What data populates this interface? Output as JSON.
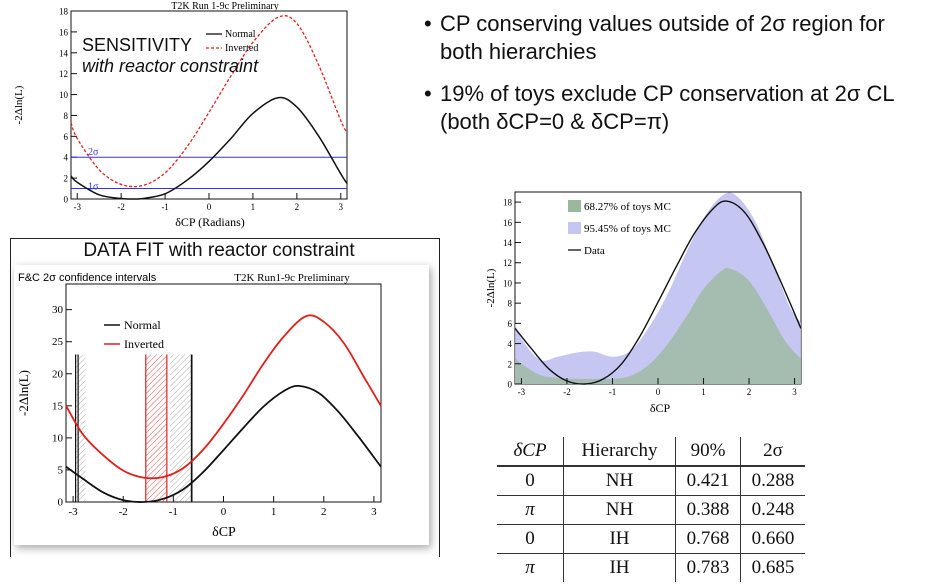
{
  "sensitivity": {
    "header": "T2K Run 1-9c Preliminary",
    "label": "SENSITIVITY",
    "sublabel": "with reactor constraint",
    "xlabel": "δCP (Radians)",
    "ylabel": "-2Δln(L)",
    "legend": [
      "Normal",
      "Inverted"
    ],
    "sigma_labels": [
      "2σ",
      "1σ"
    ]
  },
  "bullets": [
    "CP conserving values outside of 2σ region for both hierarchies",
    "19% of toys exclude CP conservation at 2σ CL (both δCP=0 & δCP=π)"
  ],
  "datafit": {
    "title": "DATA FIT with reactor constraint",
    "caption": "F&C 2σ confidence intervals",
    "header": "T2K Run1-9c Preliminary",
    "xlabel": "δCP",
    "ylabel": "-2Δln(L)",
    "legend": [
      "Normal",
      "Inverted"
    ]
  },
  "toys": {
    "xlabel": "δCP",
    "ylabel": "-2Δln(L)",
    "legend": [
      "68.27% of toys MC",
      "95.45% of toys MC",
      "Data"
    ]
  },
  "table": {
    "headers": [
      "δCP",
      "Hierarchy",
      "90%",
      "2σ"
    ],
    "rows": [
      [
        "0",
        "NH",
        "0.421",
        "0.288"
      ],
      [
        "π",
        "NH",
        "0.388",
        "0.248"
      ],
      [
        "0",
        "IH",
        "0.768",
        "0.660"
      ],
      [
        "π",
        "IH",
        "0.783",
        "0.685"
      ]
    ]
  },
  "chart_data": [
    {
      "type": "line",
      "title": "T2K Run 1-9c Preliminary",
      "xlabel": "δCP (Radians)",
      "ylabel": "-2Δln(L)",
      "xlim": [
        -3.1416,
        3.1416
      ],
      "ylim": [
        0,
        18
      ],
      "x_ticks": [
        -3,
        -2,
        -1,
        0,
        1,
        2,
        3
      ],
      "y_ticks": [
        0,
        2,
        4,
        6,
        8,
        10,
        12,
        14,
        16,
        18
      ],
      "hlines": [
        {
          "y": 4,
          "label": "2σ"
        },
        {
          "y": 1,
          "label": "1σ"
        }
      ],
      "series": [
        {
          "name": "Normal",
          "x": [
            -3.14,
            -3.0,
            -2.5,
            -2.0,
            -1.7,
            -1.5,
            -1.0,
            -0.5,
            0.0,
            0.5,
            1.0,
            1.57,
            2.0,
            2.5,
            3.0,
            3.14
          ],
          "values": [
            2.2,
            1.6,
            0.4,
            0.05,
            0.0,
            0.05,
            0.5,
            1.8,
            3.6,
            5.8,
            8.2,
            9.7,
            8.8,
            6.0,
            2.4,
            1.5
          ]
        },
        {
          "name": "Inverted",
          "x": [
            -3.14,
            -3.0,
            -2.5,
            -2.0,
            -1.5,
            -1.0,
            -0.5,
            0.0,
            0.5,
            1.0,
            1.57,
            2.0,
            2.5,
            3.0,
            3.14
          ],
          "values": [
            7.3,
            5.8,
            2.8,
            1.4,
            1.3,
            2.5,
            5.0,
            8.3,
            11.8,
            15.0,
            17.4,
            16.8,
            12.8,
            7.5,
            6.4
          ]
        }
      ]
    },
    {
      "type": "line",
      "title": "T2K Run1-9c Preliminary",
      "xlabel": "δCP",
      "ylabel": "-2Δln(L)",
      "xlim": [
        -3.1416,
        3.1416
      ],
      "ylim": [
        0,
        34
      ],
      "x_ticks": [
        -3,
        -2,
        -1,
        0,
        1,
        2,
        3
      ],
      "y_ticks": [
        0,
        5,
        10,
        15,
        20,
        25,
        30
      ],
      "series": [
        {
          "name": "Normal",
          "x": [
            -3.14,
            -2.8,
            -2.4,
            -2.0,
            -1.6,
            -1.2,
            -0.8,
            -0.4,
            0.0,
            0.4,
            0.8,
            1.2,
            1.5,
            1.9,
            2.3,
            2.7,
            3.14
          ],
          "values": [
            5.5,
            3.6,
            1.5,
            0.3,
            0.0,
            0.5,
            2.0,
            4.7,
            8.1,
            11.6,
            14.9,
            17.3,
            18.1,
            17.0,
            14.0,
            10.1,
            5.5
          ]
        },
        {
          "name": "Inverted",
          "x": [
            -3.14,
            -2.8,
            -2.4,
            -2.0,
            -1.6,
            -1.2,
            -0.8,
            -0.4,
            0.0,
            0.4,
            0.8,
            1.2,
            1.65,
            2.0,
            2.4,
            2.8,
            3.14
          ],
          "values": [
            15.0,
            10.5,
            7.3,
            4.9,
            3.8,
            3.9,
            5.3,
            8.2,
            12.2,
            16.7,
            21.6,
            25.8,
            29.0,
            28.1,
            24.8,
            19.5,
            15.0
          ]
        }
      ],
      "intervals": {
        "Normal": [
          [
            -2.95,
            -2.9
          ],
          [
            -0.64,
            -0.63
          ]
        ],
        "Inverted": [
          [
            -1.55,
            -1.13
          ]
        ]
      }
    },
    {
      "type": "area",
      "xlabel": "δCP",
      "ylabel": "-2Δln(L)",
      "xlim": [
        -3.1416,
        3.1416
      ],
      "ylim": [
        0,
        19
      ],
      "x_ticks": [
        -3,
        -2,
        -1,
        0,
        1,
        2,
        3
      ],
      "y_ticks": [
        0,
        2,
        4,
        6,
        8,
        10,
        12,
        14,
        16,
        18
      ],
      "series": [
        {
          "name": "95.45% of toys MC",
          "x": [
            -3.14,
            -3.0,
            -2.6,
            -2.2,
            -1.8,
            -1.4,
            -1.0,
            -0.6,
            -0.2,
            0.2,
            0.6,
            1.0,
            1.4,
            1.7,
            2.1,
            2.5,
            2.9,
            3.14
          ],
          "values": [
            6.0,
            4.5,
            2.4,
            2.7,
            3.1,
            3.2,
            2.7,
            3.3,
            5.6,
            8.8,
            12.8,
            16.4,
            18.6,
            18.7,
            16.4,
            12.2,
            7.6,
            6.1
          ]
        },
        {
          "name": "68.27% of toys MC",
          "x": [
            -3.14,
            -3.0,
            -2.6,
            -2.2,
            -1.8,
            -1.4,
            -1.0,
            -0.6,
            -0.2,
            0.2,
            0.6,
            1.0,
            1.4,
            1.6,
            2.0,
            2.4,
            2.8,
            3.14
          ],
          "values": [
            2.6,
            2.0,
            0.9,
            0.6,
            0.5,
            0.5,
            0.5,
            0.8,
            1.9,
            3.9,
            6.5,
            9.4,
            11.2,
            11.4,
            10.2,
            7.4,
            4.2,
            2.5
          ]
        },
        {
          "name": "Data",
          "x": [
            -3.14,
            -2.8,
            -2.4,
            -2.0,
            -1.6,
            -1.2,
            -0.8,
            -0.4,
            0.0,
            0.4,
            0.8,
            1.2,
            1.5,
            1.9,
            2.3,
            2.7,
            3.14
          ],
          "values": [
            5.5,
            3.6,
            1.5,
            0.3,
            0.0,
            0.5,
            2.0,
            4.7,
            8.1,
            11.6,
            14.9,
            17.3,
            18.1,
            17.0,
            14.0,
            10.1,
            5.5
          ]
        }
      ]
    }
  ],
  "colors": {
    "normal": "#111111",
    "inverted": "#e0201c",
    "band68": "#9ab89b",
    "band95": "#c6c6f2",
    "sigma_line": "#3434ee"
  }
}
